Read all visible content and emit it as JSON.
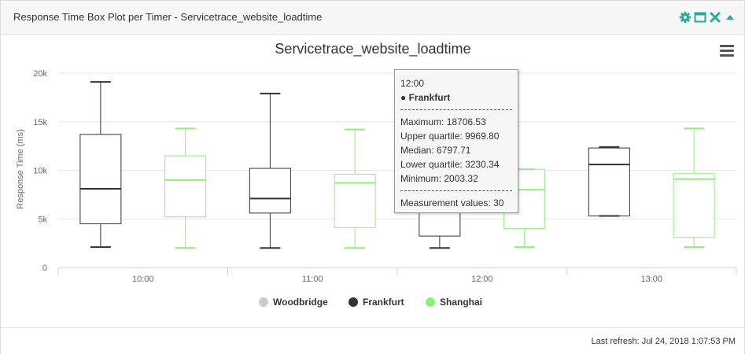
{
  "panel": {
    "title": "Response Time Box Plot per Timer - Servicetrace_website_loadtime",
    "icons": [
      "gear-icon",
      "maximize-icon",
      "close-icon",
      "collapse-arrow-icon"
    ],
    "icon_color": "#2aa89b"
  },
  "footer": {
    "last_refresh": "Last refresh: Jul 24, 2018 1:07:53 PM"
  },
  "chart_data": {
    "type": "boxplot",
    "title": "Servicetrace_website_loadtime",
    "ylabel": "Response Time (ms)",
    "ylim": [
      0,
      20000
    ],
    "ytick_labels": [
      "0",
      "5k",
      "10k",
      "15k",
      "20k"
    ],
    "yticks": [
      0,
      5000,
      10000,
      15000,
      20000
    ],
    "categories": [
      "10:00",
      "11:00",
      "12:00",
      "13:00"
    ],
    "grid": true,
    "legend_position": "bottom-center",
    "series": [
      {
        "name": "Woodbridge",
        "color": "#cccccc",
        "boxes": []
      },
      {
        "name": "Frankfurt",
        "color": "#333333",
        "boxes": [
          {
            "category": "10:00",
            "min": 2100,
            "q1": 4500,
            "median": 8100,
            "q3": 13700,
            "max": 19100
          },
          {
            "category": "11:00",
            "min": 2000,
            "q1": 5600,
            "median": 7100,
            "q3": 10200,
            "max": 17900
          },
          {
            "category": "12:00",
            "min": 2003.32,
            "q1": 3230.34,
            "median": 6797.71,
            "q3": 9969.8,
            "max": 18706.53
          },
          {
            "category": "13:00",
            "min": 5300,
            "q1": 5300,
            "median": 10600,
            "q3": 12300,
            "max": 12400
          }
        ]
      },
      {
        "name": "Shanghai",
        "color": "#90ed7d",
        "boxes": [
          {
            "category": "10:00",
            "min": 2000,
            "q1": 5200,
            "median": 9000,
            "q3": 11500,
            "max": 14300
          },
          {
            "category": "11:00",
            "min": 2000,
            "q1": 4100,
            "median": 8700,
            "q3": 9600,
            "max": 14200
          },
          {
            "category": "12:00",
            "min": 2100,
            "q1": 4000,
            "median": 8000,
            "q3": 10100,
            "max": 10100
          },
          {
            "category": "13:00",
            "min": 2100,
            "q1": 3100,
            "median": 9100,
            "q3": 9700,
            "max": 14300
          }
        ]
      }
    ],
    "tooltip": {
      "category": "12:00",
      "series_bullet": "●",
      "series": "Frankfurt",
      "maximum_label": "Maximum:",
      "maximum": "18706.53",
      "upper_quartile_label": "Upper quartile:",
      "upper_quartile": "9969.80",
      "median_label": "Median:",
      "median": "6797.71",
      "lower_quartile_label": "Lower quartile:",
      "lower_quartile": "3230.34",
      "minimum_label": "Minimum:",
      "minimum": "2003.32",
      "measurements_label": "Measurement values:",
      "measurements": "30"
    }
  }
}
